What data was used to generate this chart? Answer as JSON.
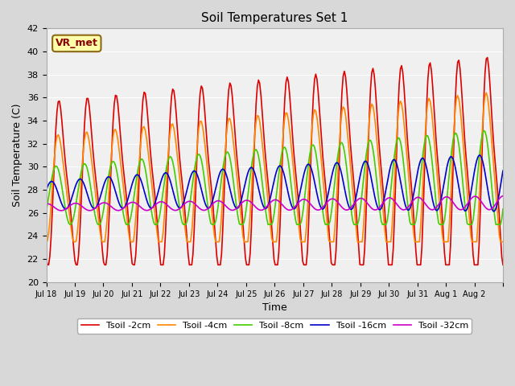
{
  "title": "Soil Temperatures Set 1",
  "xlabel": "Time",
  "ylabel": "Soil Temperature (C)",
  "ylim": [
    20,
    42
  ],
  "yticks": [
    20,
    22,
    24,
    26,
    28,
    30,
    32,
    34,
    36,
    38,
    40,
    42
  ],
  "line_colors": {
    "2cm": "#dd0000",
    "4cm": "#ff8800",
    "8cm": "#44cc00",
    "16cm": "#0000cc",
    "32cm": "#cc00cc"
  },
  "legend_labels": [
    "Tsoil -2cm",
    "Tsoil -4cm",
    "Tsoil -8cm",
    "Tsoil -16cm",
    "Tsoil -32cm"
  ],
  "annotation_text": "VR_met",
  "day_labels": [
    "Jul 18",
    "Jul 19",
    "Jul 20",
    "Jul 21",
    "Jul 22",
    "Jul 23",
    "Jul 24",
    "Jul 25",
    "Jul 26",
    "Jul 27",
    "Jul 28",
    "Jul 29",
    "Jul 30",
    "Jul 31",
    "Aug 1",
    "Aug 2"
  ],
  "n_days": 16
}
